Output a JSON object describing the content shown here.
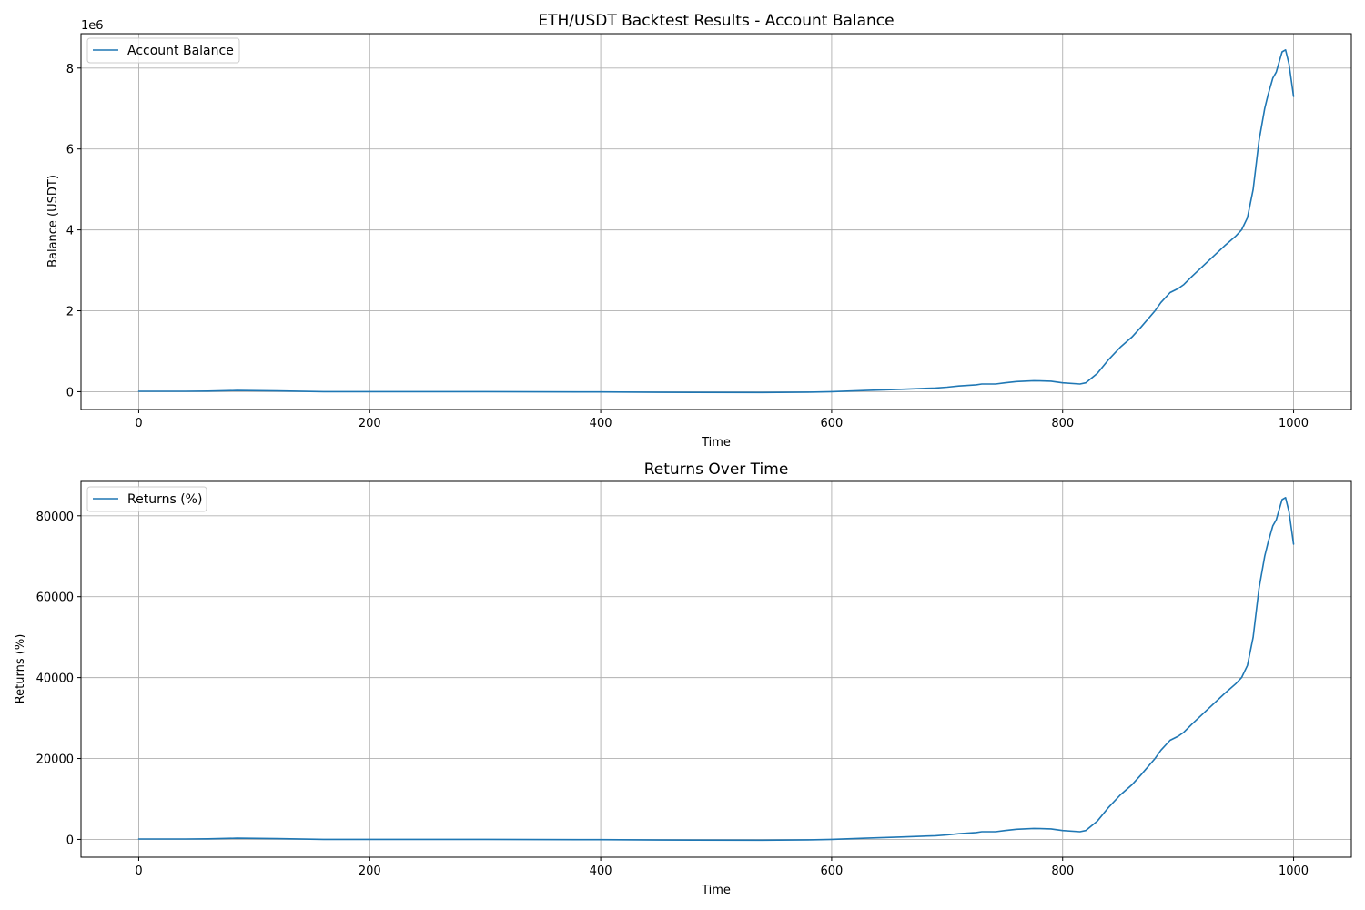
{
  "chart_data": [
    {
      "type": "line",
      "title": "ETH/USDT Backtest Results - Account Balance",
      "xlabel": "Time",
      "ylabel": "Balance (USDT)",
      "y_offset_label": "1e6",
      "xlim": [
        -50,
        1050
      ],
      "ylim": [
        -0.44,
        8.85
      ],
      "xticks": [
        0,
        200,
        400,
        600,
        800,
        1000
      ],
      "yticks": [
        0,
        2,
        4,
        6,
        8
      ],
      "grid": true,
      "legend_position": "upper-left",
      "series": [
        {
          "name": "Account Balance",
          "color": "#1f77b4",
          "x": [
            0,
            40,
            60,
            85,
            120,
            160,
            200,
            300,
            400,
            450,
            540,
            580,
            600,
            630,
            660,
            690,
            700,
            710,
            725,
            730,
            742,
            750,
            760,
            775,
            790,
            800,
            815,
            820,
            830,
            840,
            850,
            860,
            868,
            880,
            885,
            893,
            900,
            905,
            912,
            925,
            940,
            950,
            955,
            960,
            965,
            970,
            975,
            978,
            982,
            985,
            988,
            990,
            993,
            996,
            1000
          ],
          "y": [
            0.01,
            0.01,
            0.015,
            0.03,
            0.02,
            0.0,
            0.0,
            0.0,
            -0.005,
            -0.015,
            -0.02,
            -0.01,
            0.0,
            0.03,
            0.06,
            0.09,
            0.11,
            0.14,
            0.17,
            0.19,
            0.19,
            0.22,
            0.25,
            0.27,
            0.26,
            0.22,
            0.19,
            0.22,
            0.45,
            0.8,
            1.1,
            1.35,
            1.6,
            2.0,
            2.2,
            2.45,
            2.55,
            2.65,
            2.85,
            3.2,
            3.6,
            3.85,
            4.0,
            4.3,
            5.0,
            6.2,
            7.0,
            7.35,
            7.75,
            7.9,
            8.2,
            8.4,
            8.45,
            8.1,
            7.3
          ]
        }
      ]
    },
    {
      "type": "line",
      "title": "Returns Over Time",
      "xlabel": "Time",
      "ylabel": "Returns (%)",
      "xlim": [
        -50,
        1050
      ],
      "ylim": [
        -4400,
        88500
      ],
      "xticks": [
        0,
        200,
        400,
        600,
        800,
        1000
      ],
      "yticks": [
        0,
        20000,
        40000,
        60000,
        80000
      ],
      "grid": true,
      "legend_position": "upper-left",
      "series": [
        {
          "name": "Returns (%)",
          "color": "#1f77b4",
          "x": [
            0,
            40,
            60,
            85,
            120,
            160,
            200,
            300,
            400,
            450,
            540,
            580,
            600,
            630,
            660,
            690,
            700,
            710,
            725,
            730,
            742,
            750,
            760,
            775,
            790,
            800,
            815,
            820,
            830,
            840,
            850,
            860,
            868,
            880,
            885,
            893,
            900,
            905,
            912,
            925,
            940,
            950,
            955,
            960,
            965,
            970,
            975,
            978,
            982,
            985,
            988,
            990,
            993,
            996,
            1000
          ],
          "y": [
            100,
            100,
            150,
            300,
            200,
            0,
            0,
            0,
            -50,
            -150,
            -200,
            -100,
            0,
            300,
            600,
            900,
            1100,
            1400,
            1700,
            1900,
            1900,
            2200,
            2500,
            2700,
            2600,
            2200,
            1900,
            2200,
            4500,
            8000,
            11000,
            13500,
            16000,
            20000,
            22000,
            24500,
            25500,
            26500,
            28500,
            32000,
            36000,
            38500,
            40000,
            43000,
            50000,
            62000,
            70000,
            73500,
            77500,
            79000,
            82000,
            84000,
            84500,
            81000,
            73000
          ]
        }
      ]
    }
  ]
}
